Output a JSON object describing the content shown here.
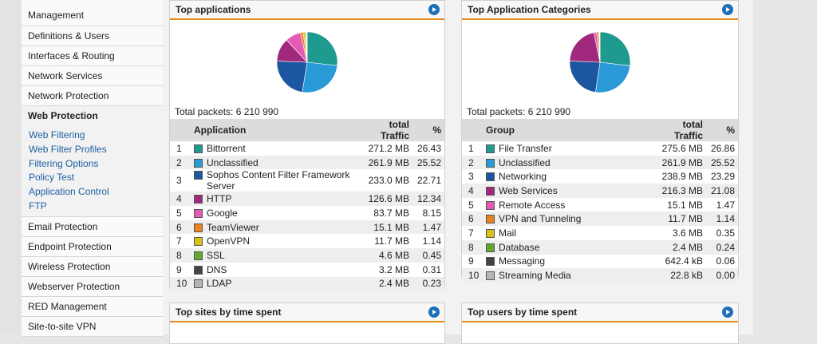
{
  "sidebar": {
    "items_top": [
      "Management",
      "Definitions & Users",
      "Interfaces & Routing",
      "Network Services",
      "Network Protection"
    ],
    "active": "Web Protection",
    "subitems": [
      "Web Filtering",
      "Web Filter Profiles",
      "Filtering Options",
      "Policy Test",
      "Application Control",
      "FTP"
    ],
    "items_bottom": [
      "Email Protection",
      "Endpoint Protection",
      "Wireless Protection",
      "Webserver Protection",
      "RED Management",
      "Site-to-site VPN"
    ]
  },
  "panels": {
    "top_applications": {
      "title": "Top applications",
      "total_packets": "Total packets: 6 210 990",
      "columns": [
        "Application",
        "total Traffic",
        "%"
      ],
      "rows": [
        {
          "idx": "1",
          "name": "Bittorrent",
          "traffic": "271.2 MB",
          "pct": "26.43",
          "color": "#1e9a8e"
        },
        {
          "idx": "2",
          "name": "Unclassified",
          "traffic": "261.9 MB",
          "pct": "25.52",
          "color": "#2a9ad6"
        },
        {
          "idx": "3",
          "name": "Sophos Content Filter Framework Server",
          "traffic": "233.0 MB",
          "pct": "22.71",
          "color": "#1d56a0"
        },
        {
          "idx": "4",
          "name": "HTTP",
          "traffic": "126.6 MB",
          "pct": "12.34",
          "color": "#a0297d"
        },
        {
          "idx": "5",
          "name": "Google",
          "traffic": "83.7 MB",
          "pct": "8.15",
          "color": "#e35bb5"
        },
        {
          "idx": "6",
          "name": "TeamViewer",
          "traffic": "15.1 MB",
          "pct": "1.47",
          "color": "#e8821e"
        },
        {
          "idx": "7",
          "name": "OpenVPN",
          "traffic": "11.7 MB",
          "pct": "1.14",
          "color": "#d6c21a"
        },
        {
          "idx": "8",
          "name": "SSL",
          "traffic": "4.6 MB",
          "pct": "0.45",
          "color": "#5fa832"
        },
        {
          "idx": "9",
          "name": "DNS",
          "traffic": "3.2 MB",
          "pct": "0.31",
          "color": "#444444"
        },
        {
          "idx": "10",
          "name": "LDAP",
          "traffic": "2.4 MB",
          "pct": "0.23",
          "color": "#b5b5b5"
        }
      ]
    },
    "top_categories": {
      "title": "Top Application Categories",
      "total_packets": "Total packets: 6 210 990",
      "columns": [
        "Group",
        "total Traffic",
        "%"
      ],
      "rows": [
        {
          "idx": "1",
          "name": "File Transfer",
          "traffic": "275.6 MB",
          "pct": "26.86",
          "color": "#1e9a8e"
        },
        {
          "idx": "2",
          "name": "Unclassified",
          "traffic": "261.9 MB",
          "pct": "25.52",
          "color": "#2a9ad6"
        },
        {
          "idx": "3",
          "name": "Networking",
          "traffic": "238.9 MB",
          "pct": "23.29",
          "color": "#1d56a0"
        },
        {
          "idx": "4",
          "name": "Web Services",
          "traffic": "216.3 MB",
          "pct": "21.08",
          "color": "#a0297d"
        },
        {
          "idx": "5",
          "name": "Remote Access",
          "traffic": "15.1 MB",
          "pct": "1.47",
          "color": "#e35bb5"
        },
        {
          "idx": "6",
          "name": "VPN and Tunneling",
          "traffic": "11.7 MB",
          "pct": "1.14",
          "color": "#e8821e"
        },
        {
          "idx": "7",
          "name": "Mail",
          "traffic": "3.6 MB",
          "pct": "0.35",
          "color": "#d6c21a"
        },
        {
          "idx": "8",
          "name": "Database",
          "traffic": "2.4 MB",
          "pct": "0.24",
          "color": "#5fa832"
        },
        {
          "idx": "9",
          "name": "Messaging",
          "traffic": "642.4 kB",
          "pct": "0.06",
          "color": "#444444"
        },
        {
          "idx": "10",
          "name": "Streaming Media",
          "traffic": "22.8 kB",
          "pct": "0.00",
          "color": "#b5b5b5"
        }
      ]
    },
    "top_sites": {
      "title": "Top sites by time spent"
    },
    "top_users": {
      "title": "Top users by time spent"
    }
  },
  "icons": {
    "panel_go": "circle-arrow-right-icon"
  }
}
